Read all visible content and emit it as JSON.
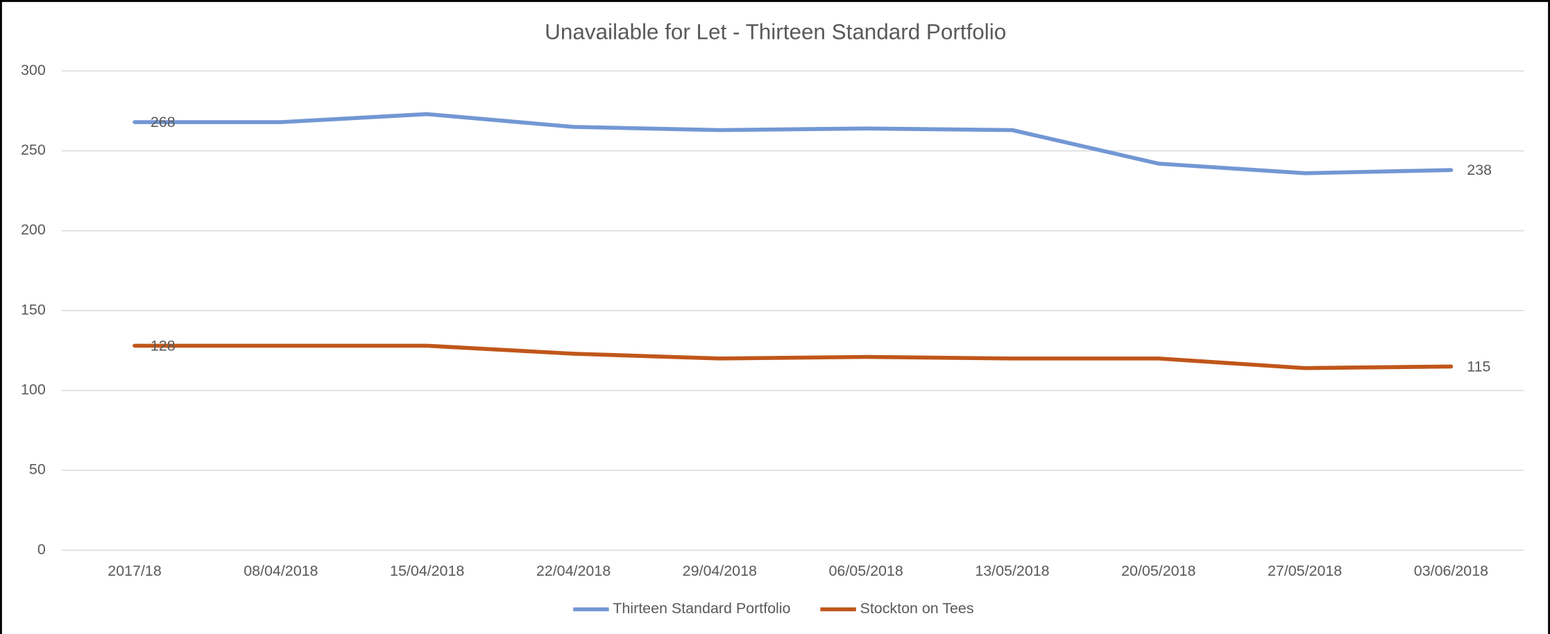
{
  "chart_data": {
    "type": "line",
    "title": "Unavailable for Let -  Thirteen Standard Portfolio",
    "categories": [
      "2017/18",
      "08/04/2018",
      "15/04/2018",
      "22/04/2018",
      "29/04/2018",
      "06/05/2018",
      "13/05/2018",
      "20/05/2018",
      "27/05/2018",
      "03/06/2018"
    ],
    "series": [
      {
        "name": "Thirteen Standard Portfolio",
        "color": "#7297d4",
        "values": [
          268,
          268,
          273,
          265,
          263,
          264,
          263,
          242,
          236,
          238
        ]
      },
      {
        "name": "Stockton on Tees",
        "color": "#c0561a",
        "values": [
          128,
          128,
          128,
          123,
          120,
          121,
          120,
          120,
          114,
          115
        ]
      }
    ],
    "ylim": [
      0,
      300
    ],
    "yticks": [
      0,
      50,
      100,
      150,
      200,
      250,
      300
    ],
    "grid": true,
    "legend": "bottom"
  }
}
